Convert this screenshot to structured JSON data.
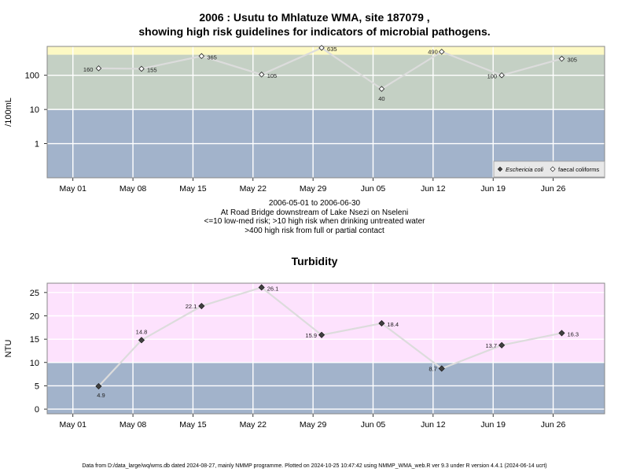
{
  "page": {
    "title_line1": "2006 : Usutu to Mhlatuze WMA, site 187079 ,",
    "title_line2": "showing high risk guidelines for indicators of microbial pathogens.",
    "subtitle_lines": [
      "2006-05-01 to 2006-06-30",
      "At Road Bridge downstream of Lake Nsezi on Nseleni",
      "<=10 low-med risk; >10 high risk when drinking untreated water",
      ">400 high risk from full or partial contact"
    ],
    "footer": "Data from D:/data_large/wq/wms.db dated 2024-08-27, mainly NMMP programme. Plotted on 2024-10-25 10:47:42 using NMMP_WMA_web.R ver 9.3 under R version 4.4.1 (2024-06-14 ucrt)"
  },
  "colors": {
    "low_band": "#a2b3cb",
    "mid_band": "#c4d0c4",
    "high_band": "#fdf9c4",
    "turb_high_band": "#fde2fd",
    "grid": "#ffffff",
    "line": "#dcdcdc",
    "point_fill_dark": "#404040",
    "point_open": "#ffffff"
  },
  "chart_data": [
    {
      "type": "scatter",
      "title": "2006 : Usutu to Mhlatuze WMA, site 187079 , showing high risk guidelines for indicators of microbial pathogens.",
      "ylabel": "/100mL",
      "yscale": "log",
      "ylim": [
        0.1,
        700
      ],
      "yticks": [
        1,
        10,
        100
      ],
      "ytick_labels": [
        "1",
        "10",
        "100"
      ],
      "xticks": [
        "2006-05-01",
        "2006-05-08",
        "2006-05-15",
        "2006-05-22",
        "2006-05-29",
        "2006-06-05",
        "2006-06-12",
        "2006-06-19",
        "2006-06-26"
      ],
      "xtick_labels": [
        "May 01",
        "May 08",
        "May 15",
        "May 22",
        "May 29",
        "Jun 05",
        "Jun 12",
        "Jun 19",
        "Jun 26"
      ],
      "xlim": [
        "2006-04-28",
        "2006-07-02"
      ],
      "bands": [
        {
          "from": 0.1,
          "to": 10,
          "color": "#a2b3cb"
        },
        {
          "from": 10,
          "to": 400,
          "color": "#c4d0c4"
        },
        {
          "from": 400,
          "to": 700,
          "color": "#fdf9c4"
        }
      ],
      "legend": {
        "position": "bottom-right",
        "entries": [
          "Eschericia coli",
          "faecal coliforms"
        ]
      },
      "series": [
        {
          "name": "faecal coliforms",
          "marker": "open-diamond",
          "points": [
            {
              "x": "2006-05-04",
              "y": 160,
              "label": "160"
            },
            {
              "x": "2006-05-09",
              "y": 155,
              "label": "155"
            },
            {
              "x": "2006-05-16",
              "y": 365,
              "label": "365"
            },
            {
              "x": "2006-05-23",
              "y": 105,
              "label": "105"
            },
            {
              "x": "2006-05-30",
              "y": 635,
              "label": "635"
            },
            {
              "x": "2006-06-06",
              "y": 40,
              "label": "40"
            },
            {
              "x": "2006-06-13",
              "y": 490,
              "label": "490"
            },
            {
              "x": "2006-06-20",
              "y": 100,
              "label": "100"
            },
            {
              "x": "2006-06-27",
              "y": 305,
              "label": "305"
            }
          ]
        }
      ]
    },
    {
      "type": "scatter",
      "title": "Turbidity",
      "ylabel": "NTU",
      "ylim": [
        -1,
        27
      ],
      "yticks": [
        0,
        5,
        10,
        15,
        20,
        25
      ],
      "ytick_labels": [
        "0",
        "5",
        "10",
        "15",
        "20",
        "25"
      ],
      "xticks": [
        "2006-05-01",
        "2006-05-08",
        "2006-05-15",
        "2006-05-22",
        "2006-05-29",
        "2006-06-05",
        "2006-06-12",
        "2006-06-19",
        "2006-06-26"
      ],
      "xtick_labels": [
        "May 01",
        "May 08",
        "May 15",
        "May 22",
        "May 29",
        "Jun 05",
        "Jun 12",
        "Jun 19",
        "Jun 26"
      ],
      "xlim": [
        "2006-04-28",
        "2006-07-02"
      ],
      "bands": [
        {
          "from": -1,
          "to": 10,
          "color": "#a2b3cb"
        },
        {
          "from": 10,
          "to": 27,
          "color": "#fde2fd"
        }
      ],
      "series": [
        {
          "marker": "filled-diamond",
          "points": [
            {
              "x": "2006-05-04",
              "y": 4.9,
              "label": "4.9"
            },
            {
              "x": "2006-05-09",
              "y": 14.8,
              "label": "14.8"
            },
            {
              "x": "2006-05-16",
              "y": 22.1,
              "label": "22.1"
            },
            {
              "x": "2006-05-23",
              "y": 26.1,
              "label": "26.1"
            },
            {
              "x": "2006-05-30",
              "y": 15.9,
              "label": "15.9"
            },
            {
              "x": "2006-06-06",
              "y": 18.4,
              "label": "18.4"
            },
            {
              "x": "2006-06-13",
              "y": 8.7,
              "label": "8.7"
            },
            {
              "x": "2006-06-20",
              "y": 13.7,
              "label": "13.7"
            },
            {
              "x": "2006-06-27",
              "y": 16.3,
              "label": "16.3"
            }
          ]
        }
      ]
    }
  ]
}
